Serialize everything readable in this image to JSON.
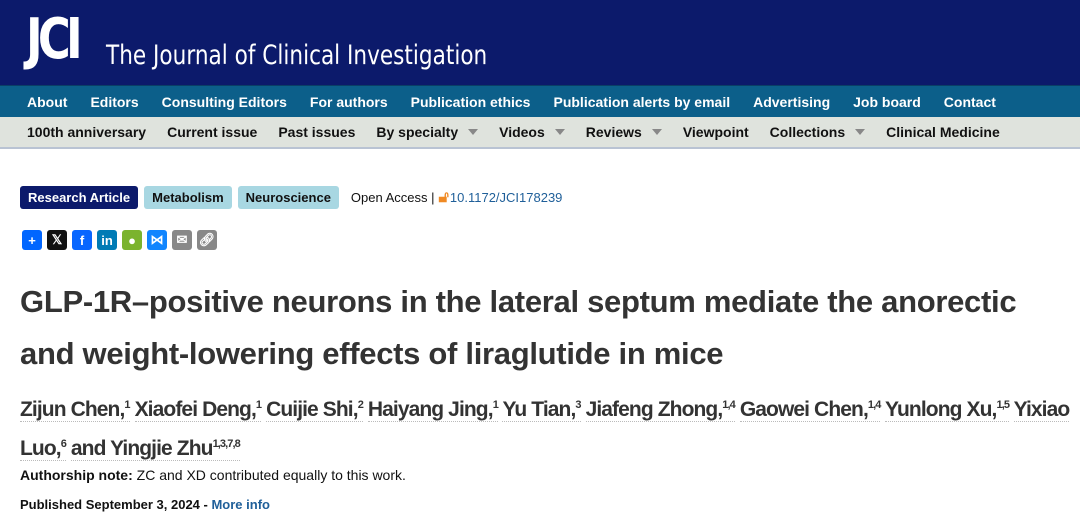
{
  "header": {
    "logo": "JCI",
    "journal_name": "The Journal of Clinical Investigation"
  },
  "nav_primary": [
    "About",
    "Editors",
    "Consulting Editors",
    "For authors",
    "Publication ethics",
    "Publication alerts by email",
    "Advertising",
    "Job board",
    "Contact"
  ],
  "nav_secondary": [
    {
      "label": "100th anniversary",
      "dropdown": false
    },
    {
      "label": "Current issue",
      "dropdown": false
    },
    {
      "label": "Past issues",
      "dropdown": false
    },
    {
      "label": "By specialty",
      "dropdown": true
    },
    {
      "label": "Videos",
      "dropdown": true
    },
    {
      "label": "Reviews",
      "dropdown": true
    },
    {
      "label": "Viewpoint",
      "dropdown": false
    },
    {
      "label": "Collections",
      "dropdown": true
    },
    {
      "label": "Clinical Medicine",
      "dropdown": false
    }
  ],
  "tags": [
    "Research Article",
    "Metabolism",
    "Neuroscience"
  ],
  "access": "Open Access |",
  "doi": "10.1172/JCI178239",
  "share_icons": [
    "share-plus",
    "x",
    "facebook",
    "linkedin",
    "wechat",
    "bluesky",
    "email",
    "copy-link"
  ],
  "colors": {
    "header": "#0c1a6b",
    "nav": "#0c5f8a",
    "subnav": "#dfe3dd",
    "tag_primary": "#0c1a6b",
    "tag_secondary": "#a8d7e2",
    "link": "#1f5f99"
  },
  "title": "GLP-1R–positive neurons in the lateral septum mediate the anorectic and weight-lowering effects of liraglutide in mice",
  "authors": [
    {
      "name": "Zijun Chen,",
      "aff": "1"
    },
    {
      "name": "Xiaofei Deng,",
      "aff": "1"
    },
    {
      "name": "Cuijie Shi,",
      "aff": "2"
    },
    {
      "name": "Haiyang Jing,",
      "aff": "1"
    },
    {
      "name": "Yu Tian,",
      "aff": "3"
    },
    {
      "name": "Jiafeng Zhong,",
      "aff": "1,4"
    },
    {
      "name": "Gaowei Chen,",
      "aff": "1,4"
    },
    {
      "name": "Yunlong Xu,",
      "aff": "1,5"
    },
    {
      "name": "Yixiao Luo,",
      "aff": "6"
    },
    {
      "name": "and Yingjie Zhu",
      "aff": "1,3,7,8"
    }
  ],
  "authorship_note": {
    "label": "Authorship note:",
    "text": " ZC and XD contributed equally to this work."
  },
  "published": {
    "text": "Published September 3, 2024 - ",
    "link": "More info"
  }
}
